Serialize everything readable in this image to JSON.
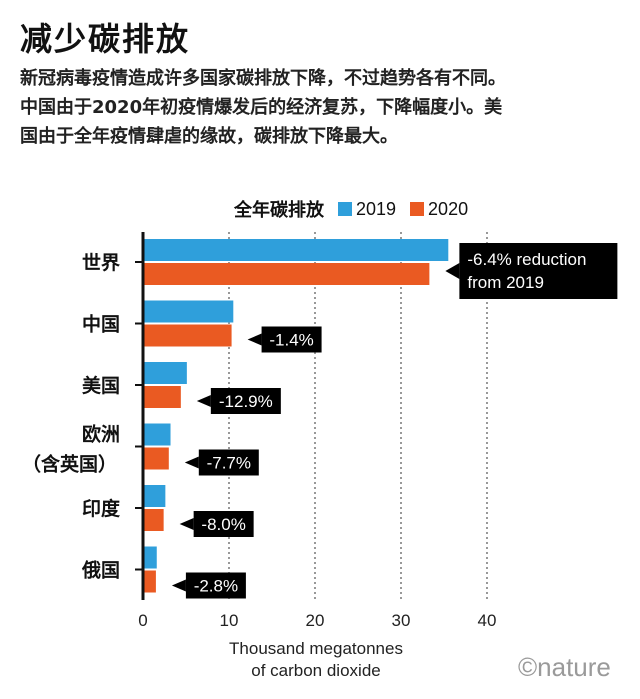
{
  "header": {
    "title": "减少碳排放",
    "desc_lines": [
      "新冠病毒疫情造成许多国家碳排放下降，不过趋势各有不同。",
      "中国由于2020年初疫情爆发后的经济复苏，下降幅度小。美",
      "国由于全年疫情肆虐的缘故，碳排放下降最大。"
    ]
  },
  "legend": {
    "title": "全年碳排放",
    "items": [
      {
        "label": "2019",
        "color": "#2f9fdb"
      },
      {
        "label": "2020",
        "color": "#ea5a22"
      }
    ]
  },
  "watermark": "©nature",
  "chart_data": {
    "type": "bar",
    "orientation": "horizontal",
    "categories": [
      "世界",
      "中国",
      "美国",
      "欧洲（含英国）",
      "印度",
      "俄国"
    ],
    "category_lines": [
      [
        "世界"
      ],
      [
        "中国"
      ],
      [
        "美国"
      ],
      [
        "欧洲",
        "（含英国）"
      ],
      [
        "印度"
      ],
      [
        "俄国"
      ]
    ],
    "series": [
      {
        "name": "2019",
        "color": "#2f9fdb",
        "values": [
          35.5,
          10.5,
          5.1,
          3.2,
          2.6,
          1.6
        ]
      },
      {
        "name": "2020",
        "color": "#ea5a22",
        "values": [
          33.3,
          10.3,
          4.4,
          3.0,
          2.4,
          1.5
        ]
      }
    ],
    "annotations": [
      [
        "-6.4% reduction",
        "from 2019"
      ],
      [
        "-1.4%"
      ],
      [
        "-12.9%"
      ],
      [
        "-7.7%"
      ],
      [
        "-8.0%"
      ],
      [
        "-2.8%"
      ]
    ],
    "xlabel": [
      "Thousand megatonnes",
      "of carbon dioxide"
    ],
    "xlim": [
      0,
      40
    ],
    "xticks": [
      0,
      10,
      20,
      30,
      40
    ],
    "grid": true
  }
}
